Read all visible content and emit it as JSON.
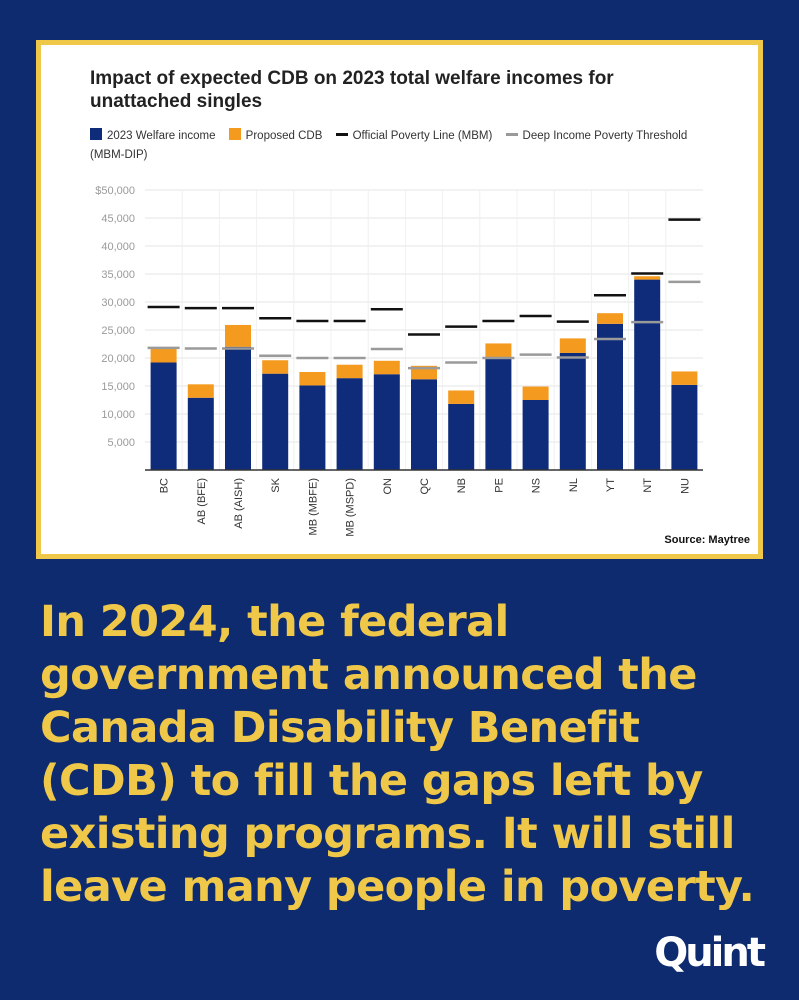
{
  "chart_card": {
    "title": "Impact of expected CDB on 2023 total welfare incomes for unattached singles",
    "source": "Source: Maytree"
  },
  "headline": "In 2024, the federal government announced the Canada Disability Benefit (CDB) to fill the gaps left by existing programs. It will still leave many people in poverty.",
  "logo_text": "Quint",
  "colors": {
    "background": "#0d2b6e",
    "border": "#efc84a",
    "welfare": "#0f2c7a",
    "cdb": "#f39a1f",
    "poverty_line": "#111111",
    "deep_poverty": "#9a9a9a",
    "headline": "#efc84a"
  },
  "chart_data": {
    "type": "bar",
    "title": "Impact of expected CDB on 2023 total welfare incomes for unattached singles",
    "xlabel": "",
    "ylabel": "",
    "ylim": [
      0,
      50000
    ],
    "yticks": [
      5000,
      10000,
      15000,
      20000,
      25000,
      30000,
      35000,
      40000,
      45000,
      50000
    ],
    "ytick_labels": [
      "5,000",
      "10,000",
      "15,000",
      "20,000",
      "25,000",
      "30,000",
      "35,000",
      "40,000",
      "45,000",
      "$50,000"
    ],
    "grid": true,
    "legend_position": "top",
    "stacked": true,
    "categories": [
      "BC",
      "AB (BFE)",
      "AB (AISH)",
      "SK",
      "MB (MBFE)",
      "MB (MSPD)",
      "ON",
      "QC",
      "NB",
      "PE",
      "NS",
      "NL",
      "YT",
      "NT",
      "NU"
    ],
    "series": [
      {
        "name": "2023 Welfare income",
        "kind": "bar",
        "color": "#0f2c7a",
        "values": [
          19200,
          12900,
          22000,
          17200,
          15100,
          16400,
          17100,
          16200,
          11800,
          20000,
          12500,
          20900,
          26100,
          34000,
          15200
        ]
      },
      {
        "name": "Proposed CDB",
        "kind": "bar",
        "color": "#f39a1f",
        "values": [
          2400,
          2400,
          3900,
          2400,
          2400,
          2400,
          2400,
          2400,
          2400,
          2600,
          2400,
          2600,
          1900,
          600,
          2400
        ]
      },
      {
        "name": "Official Poverty Line (MBM)",
        "kind": "marker",
        "color": "#111111",
        "values": [
          29100,
          28900,
          28900,
          27100,
          26600,
          26600,
          28700,
          24200,
          25600,
          26600,
          27500,
          26500,
          31200,
          35100,
          44700
        ]
      },
      {
        "name": "Deep Income Poverty Threshold (MBM-DIP)",
        "kind": "marker",
        "color": "#9a9a9a",
        "values": [
          21800,
          21700,
          21700,
          20400,
          20000,
          20000,
          21600,
          18200,
          19200,
          20000,
          20600,
          20100,
          23400,
          26400,
          33600
        ]
      }
    ]
  }
}
